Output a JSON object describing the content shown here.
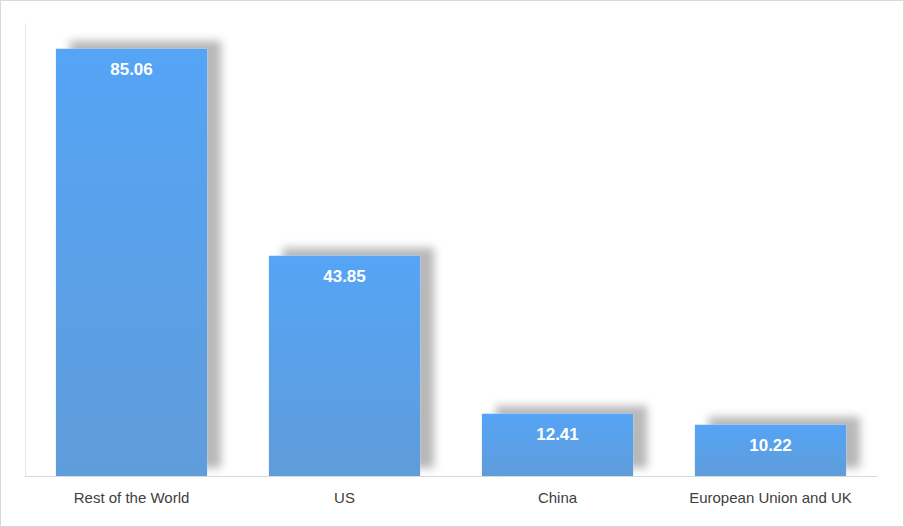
{
  "chart_data": {
    "type": "bar",
    "categories": [
      "Rest of the World",
      "US",
      "China",
      "European Union and UK"
    ],
    "values": [
      85.06,
      43.85,
      12.41,
      10.22
    ],
    "color": "#4a8fd6",
    "ylim": [
      0,
      90
    ],
    "grid": false,
    "data_labels": true,
    "tick_labels": "x"
  }
}
